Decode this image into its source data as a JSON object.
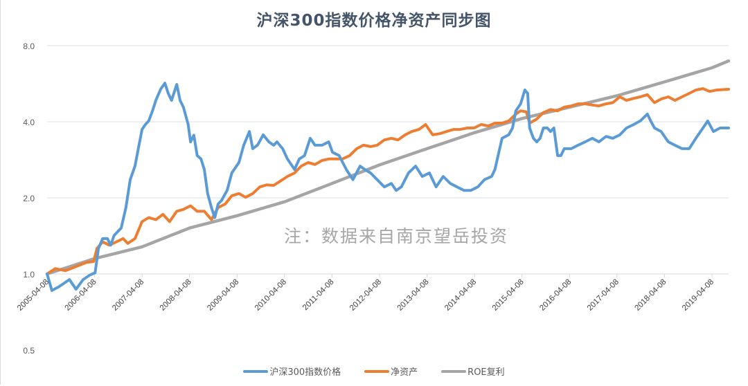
{
  "chart_data": {
    "type": "line",
    "title": "沪深300指数价格净资产同步图",
    "note": "注：数据来自南京望岳投资",
    "yscale": "log2",
    "ylim": [
      0.5,
      8.0
    ],
    "yticks": [
      "8.0",
      "4.0",
      "2.0",
      "1.0",
      "0.5"
    ],
    "ytick_values": [
      8,
      4,
      2,
      1,
      0.5
    ],
    "xlim": [
      2005.27,
      2019.62
    ],
    "xticks": [
      "2005-04-08",
      "2006-04-08",
      "2007-04-08",
      "2008-04-08",
      "2009-04-08",
      "2010-04-08",
      "2011-04-08",
      "2012-04-08",
      "2013-04-08",
      "2014-04-08",
      "2015-04-08",
      "2016-04-08",
      "2017-04-08",
      "2018-04-08",
      "2019-04-08"
    ],
    "xtick_values": [
      2005.27,
      2006.27,
      2007.27,
      2008.27,
      2009.27,
      2010.27,
      2011.27,
      2012.27,
      2013.27,
      2014.27,
      2015.27,
      2016.27,
      2017.27,
      2018.27,
      2019.27
    ],
    "grid": true,
    "legend_position": "bottom",
    "series": [
      {
        "name": "沪深300指数价格",
        "color": "#5b9bd5",
        "points": [
          [
            2005.27,
            1.0
          ],
          [
            2005.37,
            0.86
          ],
          [
            2005.52,
            0.89
          ],
          [
            2005.74,
            0.95
          ],
          [
            2005.88,
            0.87
          ],
          [
            2006.03,
            0.95
          ],
          [
            2006.17,
            0.99
          ],
          [
            2006.28,
            1.01
          ],
          [
            2006.35,
            1.26
          ],
          [
            2006.44,
            1.38
          ],
          [
            2006.54,
            1.38
          ],
          [
            2006.61,
            1.3
          ],
          [
            2006.68,
            1.42
          ],
          [
            2006.83,
            1.52
          ],
          [
            2006.93,
            1.83
          ],
          [
            2007.02,
            2.36
          ],
          [
            2007.12,
            2.67
          ],
          [
            2007.19,
            3.13
          ],
          [
            2007.27,
            3.73
          ],
          [
            2007.34,
            3.9
          ],
          [
            2007.41,
            4.03
          ],
          [
            2007.49,
            4.42
          ],
          [
            2007.56,
            4.86
          ],
          [
            2007.66,
            5.38
          ],
          [
            2007.75,
            5.69
          ],
          [
            2007.82,
            5.18
          ],
          [
            2007.89,
            4.86
          ],
          [
            2008.0,
            5.62
          ],
          [
            2008.07,
            4.86
          ],
          [
            2008.14,
            4.57
          ],
          [
            2008.24,
            3.9
          ],
          [
            2008.29,
            3.33
          ],
          [
            2008.36,
            3.54
          ],
          [
            2008.43,
            2.94
          ],
          [
            2008.51,
            2.85
          ],
          [
            2008.58,
            2.59
          ],
          [
            2008.65,
            2.08
          ],
          [
            2008.73,
            1.83
          ],
          [
            2008.8,
            1.67
          ],
          [
            2008.87,
            1.89
          ],
          [
            2008.94,
            1.95
          ],
          [
            2009.06,
            2.14
          ],
          [
            2009.16,
            2.51
          ],
          [
            2009.31,
            2.76
          ],
          [
            2009.41,
            3.23
          ],
          [
            2009.53,
            3.66
          ],
          [
            2009.6,
            3.13
          ],
          [
            2009.7,
            3.23
          ],
          [
            2009.82,
            3.55
          ],
          [
            2009.94,
            3.33
          ],
          [
            2010.04,
            3.23
          ],
          [
            2010.11,
            3.33
          ],
          [
            2010.23,
            3.13
          ],
          [
            2010.33,
            2.85
          ],
          [
            2010.48,
            2.59
          ],
          [
            2010.58,
            2.85
          ],
          [
            2010.69,
            2.94
          ],
          [
            2010.81,
            3.44
          ],
          [
            2010.91,
            3.23
          ],
          [
            2011.06,
            3.23
          ],
          [
            2011.2,
            3.33
          ],
          [
            2011.28,
            3.03
          ],
          [
            2011.42,
            2.94
          ],
          [
            2011.57,
            2.59
          ],
          [
            2011.71,
            2.36
          ],
          [
            2011.86,
            2.67
          ],
          [
            2011.96,
            2.59
          ],
          [
            2012.08,
            2.51
          ],
          [
            2012.22,
            2.36
          ],
          [
            2012.37,
            2.21
          ],
          [
            2012.52,
            2.28
          ],
          [
            2012.62,
            2.14
          ],
          [
            2012.73,
            2.21
          ],
          [
            2012.88,
            2.51
          ],
          [
            2013.03,
            2.67
          ],
          [
            2013.17,
            2.43
          ],
          [
            2013.32,
            2.51
          ],
          [
            2013.46,
            2.21
          ],
          [
            2013.61,
            2.43
          ],
          [
            2013.76,
            2.28
          ],
          [
            2013.9,
            2.21
          ],
          [
            2014.05,
            2.14
          ],
          [
            2014.19,
            2.14
          ],
          [
            2014.34,
            2.21
          ],
          [
            2014.48,
            2.36
          ],
          [
            2014.63,
            2.43
          ],
          [
            2014.7,
            2.59
          ],
          [
            2014.85,
            3.44
          ],
          [
            2014.99,
            3.55
          ],
          [
            2015.07,
            3.78
          ],
          [
            2015.14,
            4.42
          ],
          [
            2015.24,
            4.71
          ],
          [
            2015.33,
            5.34
          ],
          [
            2015.39,
            5.18
          ],
          [
            2015.43,
            3.78
          ],
          [
            2015.51,
            3.44
          ],
          [
            2015.58,
            3.33
          ],
          [
            2015.65,
            3.44
          ],
          [
            2015.72,
            3.78
          ],
          [
            2015.8,
            3.78
          ],
          [
            2015.87,
            3.66
          ],
          [
            2015.94,
            3.78
          ],
          [
            2016.02,
            2.94
          ],
          [
            2016.09,
            2.94
          ],
          [
            2016.16,
            3.13
          ],
          [
            2016.31,
            3.13
          ],
          [
            2016.45,
            3.23
          ],
          [
            2016.6,
            3.33
          ],
          [
            2016.75,
            3.44
          ],
          [
            2016.89,
            3.33
          ],
          [
            2017.04,
            3.5
          ],
          [
            2017.18,
            3.44
          ],
          [
            2017.33,
            3.55
          ],
          [
            2017.47,
            3.78
          ],
          [
            2017.62,
            3.9
          ],
          [
            2017.76,
            4.03
          ],
          [
            2017.91,
            4.29
          ],
          [
            2017.98,
            4.03
          ],
          [
            2018.06,
            3.78
          ],
          [
            2018.2,
            3.66
          ],
          [
            2018.35,
            3.33
          ],
          [
            2018.49,
            3.23
          ],
          [
            2018.64,
            3.13
          ],
          [
            2018.79,
            3.13
          ],
          [
            2018.93,
            3.44
          ],
          [
            2019.08,
            3.78
          ],
          [
            2019.18,
            4.03
          ],
          [
            2019.3,
            3.66
          ],
          [
            2019.44,
            3.78
          ],
          [
            2019.62,
            3.78
          ]
        ]
      },
      {
        "name": "净资产",
        "color": "#ed7d31",
        "points": [
          [
            2005.27,
            1.0
          ],
          [
            2005.44,
            1.05
          ],
          [
            2005.66,
            1.03
          ],
          [
            2005.88,
            1.07
          ],
          [
            2006.1,
            1.11
          ],
          [
            2006.25,
            1.12
          ],
          [
            2006.32,
            1.26
          ],
          [
            2006.44,
            1.34
          ],
          [
            2006.58,
            1.3
          ],
          [
            2006.73,
            1.34
          ],
          [
            2006.87,
            1.38
          ],
          [
            2006.97,
            1.32
          ],
          [
            2007.12,
            1.38
          ],
          [
            2007.27,
            1.61
          ],
          [
            2007.41,
            1.67
          ],
          [
            2007.56,
            1.64
          ],
          [
            2007.71,
            1.72
          ],
          [
            2007.85,
            1.61
          ],
          [
            2008.0,
            1.77
          ],
          [
            2008.14,
            1.8
          ],
          [
            2008.29,
            1.86
          ],
          [
            2008.43,
            1.77
          ],
          [
            2008.58,
            1.77
          ],
          [
            2008.73,
            1.64
          ],
          [
            2008.87,
            1.83
          ],
          [
            2009.02,
            1.89
          ],
          [
            2009.16,
            2.04
          ],
          [
            2009.31,
            2.08
          ],
          [
            2009.45,
            2.01
          ],
          [
            2009.6,
            2.08
          ],
          [
            2009.75,
            2.21
          ],
          [
            2009.89,
            2.25
          ],
          [
            2010.04,
            2.24
          ],
          [
            2010.18,
            2.33
          ],
          [
            2010.33,
            2.43
          ],
          [
            2010.48,
            2.51
          ],
          [
            2010.62,
            2.67
          ],
          [
            2010.77,
            2.76
          ],
          [
            2010.91,
            2.71
          ],
          [
            2011.06,
            2.81
          ],
          [
            2011.2,
            2.85
          ],
          [
            2011.35,
            2.85
          ],
          [
            2011.49,
            2.85
          ],
          [
            2011.64,
            2.94
          ],
          [
            2011.79,
            3.13
          ],
          [
            2011.93,
            3.23
          ],
          [
            2012.08,
            3.19
          ],
          [
            2012.22,
            3.23
          ],
          [
            2012.37,
            3.39
          ],
          [
            2012.52,
            3.44
          ],
          [
            2012.66,
            3.39
          ],
          [
            2012.81,
            3.55
          ],
          [
            2012.95,
            3.66
          ],
          [
            2013.1,
            3.73
          ],
          [
            2013.24,
            3.9
          ],
          [
            2013.39,
            3.55
          ],
          [
            2013.54,
            3.59
          ],
          [
            2013.68,
            3.66
          ],
          [
            2013.83,
            3.73
          ],
          [
            2013.97,
            3.73
          ],
          [
            2014.12,
            3.78
          ],
          [
            2014.26,
            3.78
          ],
          [
            2014.41,
            3.9
          ],
          [
            2014.56,
            3.85
          ],
          [
            2014.7,
            3.95
          ],
          [
            2014.85,
            3.95
          ],
          [
            2014.99,
            4.03
          ],
          [
            2015.14,
            4.29
          ],
          [
            2015.24,
            4.42
          ],
          [
            2015.36,
            4.38
          ],
          [
            2015.43,
            3.95
          ],
          [
            2015.58,
            4.1
          ],
          [
            2015.72,
            4.35
          ],
          [
            2015.87,
            4.47
          ],
          [
            2016.02,
            4.42
          ],
          [
            2016.16,
            4.57
          ],
          [
            2016.31,
            4.62
          ],
          [
            2016.45,
            4.71
          ],
          [
            2016.6,
            4.71
          ],
          [
            2016.75,
            4.66
          ],
          [
            2016.89,
            4.62
          ],
          [
            2017.04,
            4.71
          ],
          [
            2017.18,
            4.76
          ],
          [
            2017.33,
            5.02
          ],
          [
            2017.47,
            4.86
          ],
          [
            2017.62,
            4.95
          ],
          [
            2017.76,
            5.02
          ],
          [
            2017.91,
            5.12
          ],
          [
            2018.06,
            4.76
          ],
          [
            2018.2,
            4.92
          ],
          [
            2018.35,
            5.02
          ],
          [
            2018.49,
            4.86
          ],
          [
            2018.64,
            5.02
          ],
          [
            2018.79,
            5.18
          ],
          [
            2018.93,
            5.34
          ],
          [
            2019.08,
            5.41
          ],
          [
            2019.22,
            5.27
          ],
          [
            2019.37,
            5.34
          ],
          [
            2019.62,
            5.38
          ]
        ]
      },
      {
        "name": "ROE复利",
        "color": "#a5a5a5",
        "points": [
          [
            2005.27,
            1.0
          ],
          [
            2006.27,
            1.15
          ],
          [
            2007.27,
            1.28
          ],
          [
            2008.27,
            1.52
          ],
          [
            2009.27,
            1.7
          ],
          [
            2010.27,
            1.93
          ],
          [
            2011.27,
            2.28
          ],
          [
            2012.27,
            2.7
          ],
          [
            2013.27,
            3.13
          ],
          [
            2014.27,
            3.62
          ],
          [
            2015.27,
            4.12
          ],
          [
            2016.27,
            4.57
          ],
          [
            2017.27,
            5.07
          ],
          [
            2018.27,
            5.75
          ],
          [
            2019.27,
            6.54
          ],
          [
            2019.62,
            6.96
          ]
        ]
      }
    ]
  }
}
